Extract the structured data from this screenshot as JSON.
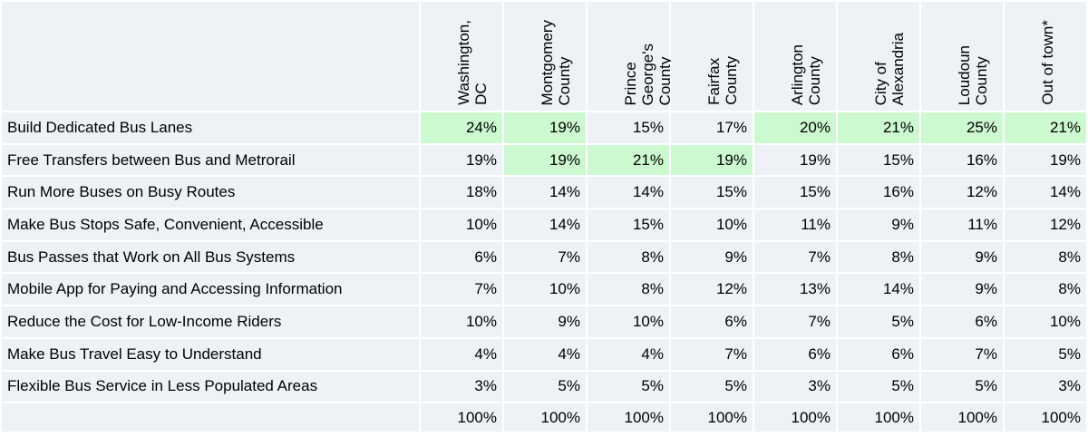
{
  "columns": [
    {
      "label": "Washington,\nDC"
    },
    {
      "label": "Montgomery\nCounty"
    },
    {
      "label": "Prince\nGeorge's\nCounty"
    },
    {
      "label": "Fairfax\nCounty"
    },
    {
      "label": "Arlington\nCounty"
    },
    {
      "label": "City of\nAlexandria"
    },
    {
      "label": "Loudoun\nCounty"
    },
    {
      "label": "Out of town*"
    }
  ],
  "rows": [
    {
      "label": "Build Dedicated Bus Lanes",
      "values": [
        "24%",
        "19%",
        "15%",
        "17%",
        "20%",
        "21%",
        "25%",
        "21%"
      ],
      "highlight": [
        true,
        true,
        false,
        false,
        true,
        true,
        true,
        true
      ]
    },
    {
      "label": "Free Transfers between Bus and Metrorail",
      "values": [
        "19%",
        "19%",
        "21%",
        "19%",
        "19%",
        "15%",
        "16%",
        "19%"
      ],
      "highlight": [
        false,
        true,
        true,
        true,
        false,
        false,
        false,
        false
      ]
    },
    {
      "label": "Run More Buses on Busy Routes",
      "values": [
        "18%",
        "14%",
        "14%",
        "15%",
        "15%",
        "16%",
        "12%",
        "14%"
      ],
      "highlight": [
        false,
        false,
        false,
        false,
        false,
        false,
        false,
        false
      ]
    },
    {
      "label": "Make Bus Stops Safe, Convenient, Accessible",
      "values": [
        "10%",
        "14%",
        "15%",
        "10%",
        "11%",
        "9%",
        "11%",
        "12%"
      ],
      "highlight": [
        false,
        false,
        false,
        false,
        false,
        false,
        false,
        false
      ]
    },
    {
      "label": "Bus Passes that Work on All Bus Systems",
      "values": [
        "6%",
        "7%",
        "8%",
        "9%",
        "7%",
        "8%",
        "9%",
        "8%"
      ],
      "highlight": [
        false,
        false,
        false,
        false,
        false,
        false,
        false,
        false
      ]
    },
    {
      "label": "Mobile App for Paying and Accessing Information",
      "values": [
        "7%",
        "10%",
        "8%",
        "12%",
        "13%",
        "14%",
        "9%",
        "8%"
      ],
      "highlight": [
        false,
        false,
        false,
        false,
        false,
        false,
        false,
        false
      ]
    },
    {
      "label": "Reduce the Cost for Low-Income Riders",
      "values": [
        "10%",
        "9%",
        "10%",
        "6%",
        "7%",
        "5%",
        "6%",
        "10%"
      ],
      "highlight": [
        false,
        false,
        false,
        false,
        false,
        false,
        false,
        false
      ]
    },
    {
      "label": "Make Bus Travel Easy to Understand",
      "values": [
        "4%",
        "4%",
        "4%",
        "7%",
        "6%",
        "6%",
        "7%",
        "5%"
      ],
      "highlight": [
        false,
        false,
        false,
        false,
        false,
        false,
        false,
        false
      ]
    },
    {
      "label": "Flexible Bus Service in Less Populated Areas",
      "values": [
        "3%",
        "5%",
        "5%",
        "5%",
        "3%",
        "5%",
        "5%",
        "3%"
      ],
      "highlight": [
        false,
        false,
        false,
        false,
        false,
        false,
        false,
        false
      ]
    }
  ],
  "totals": [
    "100%",
    "100%",
    "100%",
    "100%",
    "100%",
    "100%",
    "100%",
    "100%"
  ],
  "colors": {
    "cell": "#eef2f6",
    "highlight": "#ccf9cf"
  }
}
